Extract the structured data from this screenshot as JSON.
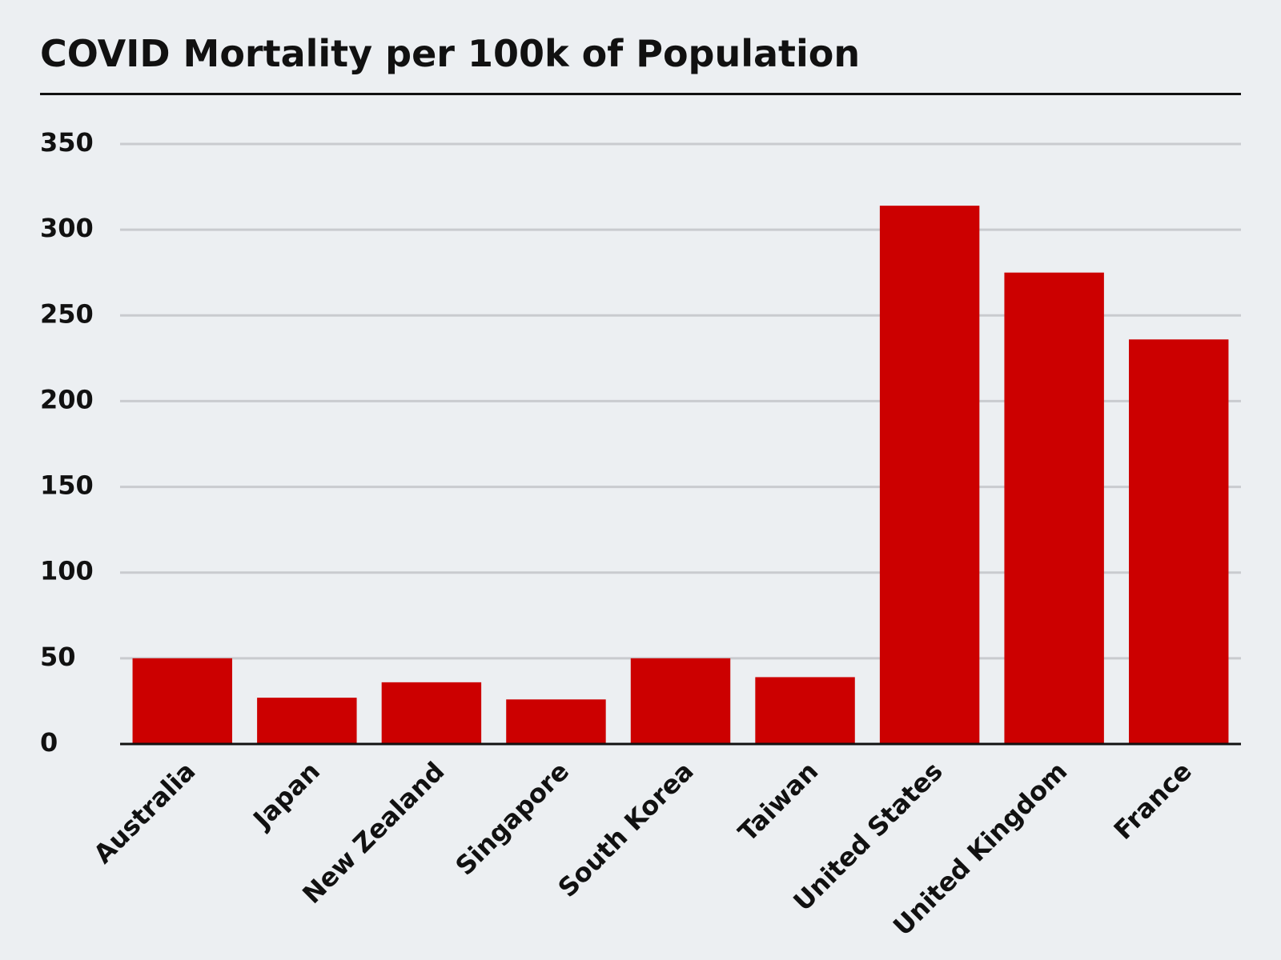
{
  "chart_data": {
    "type": "bar",
    "title": "COVID Mortality per 100k of Population",
    "xlabel": "",
    "ylabel": "",
    "categories": [
      "Australia",
      "Japan",
      "New Zealand",
      "Singapore",
      "South Korea",
      "Taiwan",
      "United States",
      "United Kingdom",
      "France"
    ],
    "values": [
      50,
      27,
      36,
      26,
      50,
      39,
      314,
      275,
      236
    ],
    "ylim": [
      0,
      350
    ],
    "yticks": [
      "0",
      "50",
      "100",
      "150",
      "200",
      "250",
      "300",
      "350"
    ],
    "grid": true,
    "legend": "none",
    "bar_color": "#cc0000",
    "grid_color": "#c9cbcf",
    "axis_color": "#111111"
  }
}
